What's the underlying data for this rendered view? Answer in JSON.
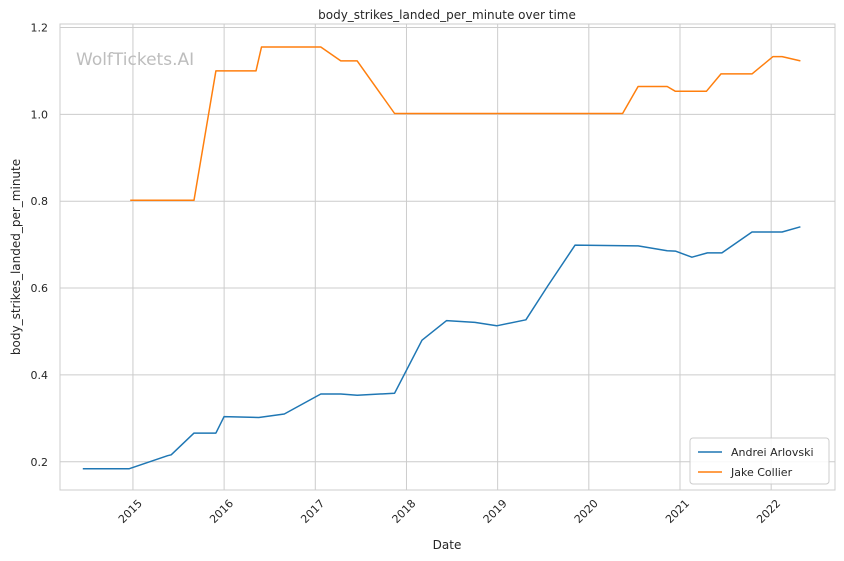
{
  "chart_data": {
    "type": "line",
    "title": "body_strikes_landed_per_minute over time",
    "xlabel": "Date",
    "ylabel": "body_strikes_landed_per_minute",
    "watermark": "WolfTickets.AI",
    "xlim": [
      2014.2,
      2022.7
    ],
    "ylim": [
      0.135,
      1.208
    ],
    "x_ticks": [
      2015,
      2016,
      2017,
      2018,
      2019,
      2020,
      2021,
      2022
    ],
    "x_tick_labels": [
      "2015",
      "2016",
      "2017",
      "2018",
      "2019",
      "2020",
      "2021",
      "2022"
    ],
    "y_ticks": [
      0.2,
      0.4,
      0.6,
      0.8,
      1.0,
      1.2
    ],
    "y_tick_labels": [
      "0.2",
      "0.4",
      "0.6",
      "0.8",
      "1.0",
      "1.2"
    ],
    "grid": true,
    "legend_position": "lower-right",
    "series": [
      {
        "name": "Andrei Arlovski",
        "color": "#1f77b4",
        "points": [
          [
            2014.45,
            0.184
          ],
          [
            2014.96,
            0.184
          ],
          [
            2015.38,
            0.214
          ],
          [
            2015.42,
            0.216
          ],
          [
            2015.67,
            0.266
          ],
          [
            2015.91,
            0.266
          ],
          [
            2016.0,
            0.304
          ],
          [
            2016.38,
            0.302
          ],
          [
            2016.66,
            0.31
          ],
          [
            2017.06,
            0.356
          ],
          [
            2017.28,
            0.356
          ],
          [
            2017.46,
            0.353
          ],
          [
            2017.87,
            0.358
          ],
          [
            2018.17,
            0.48
          ],
          [
            2018.44,
            0.525
          ],
          [
            2018.75,
            0.521
          ],
          [
            2018.99,
            0.513
          ],
          [
            2019.31,
            0.527
          ],
          [
            2019.55,
            0.605
          ],
          [
            2019.85,
            0.699
          ],
          [
            2020.54,
            0.697
          ],
          [
            2020.86,
            0.686
          ],
          [
            2020.95,
            0.685
          ],
          [
            2021.13,
            0.671
          ],
          [
            2021.3,
            0.681
          ],
          [
            2021.46,
            0.681
          ],
          [
            2021.79,
            0.729
          ],
          [
            2022.12,
            0.729
          ],
          [
            2022.32,
            0.741
          ]
        ]
      },
      {
        "name": "Jake Collier",
        "color": "#ff7f0e",
        "points": [
          [
            2014.97,
            0.802
          ],
          [
            2015.67,
            0.802
          ],
          [
            2015.91,
            1.1
          ],
          [
            2016.35,
            1.1
          ],
          [
            2016.41,
            1.155
          ],
          [
            2017.06,
            1.155
          ],
          [
            2017.28,
            1.123
          ],
          [
            2017.46,
            1.123
          ],
          [
            2017.87,
            1.002
          ],
          [
            2020.37,
            1.002
          ],
          [
            2020.54,
            1.064
          ],
          [
            2020.86,
            1.064
          ],
          [
            2020.95,
            1.053
          ],
          [
            2021.29,
            1.053
          ],
          [
            2021.45,
            1.093
          ],
          [
            2021.79,
            1.093
          ],
          [
            2022.02,
            1.133
          ],
          [
            2022.12,
            1.133
          ],
          [
            2022.32,
            1.123
          ]
        ]
      }
    ]
  }
}
